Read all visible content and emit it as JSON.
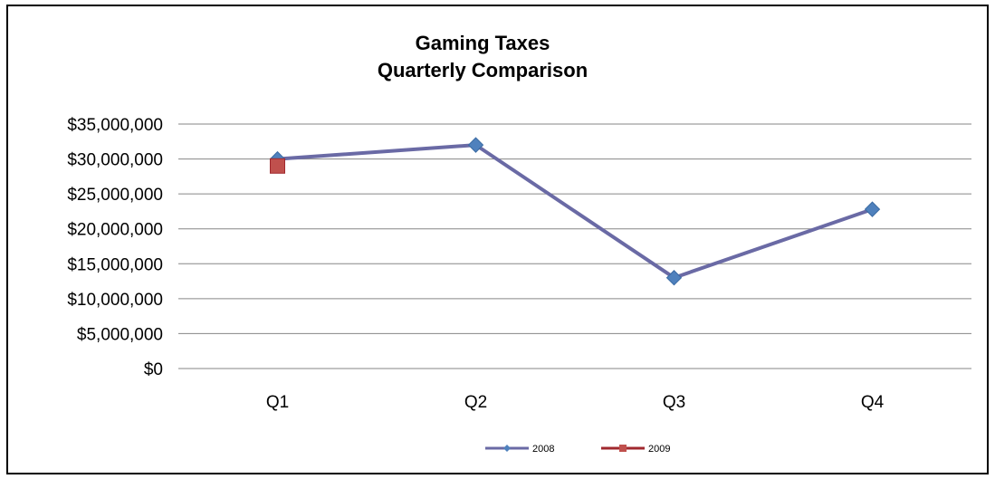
{
  "chart_data": {
    "type": "line",
    "title": "Gaming Taxes",
    "subtitle": "Quarterly Comparison",
    "categories": [
      "Q1",
      "Q2",
      "Q3",
      "Q4"
    ],
    "ylim": [
      0,
      35000000
    ],
    "yticks": [
      0,
      5000000,
      10000000,
      15000000,
      20000000,
      25000000,
      30000000,
      35000000
    ],
    "ytick_labels": [
      "$0",
      "$5,000,000",
      "$10,000,000",
      "$15,000,000",
      "$20,000,000",
      "$25,000,000",
      "$30,000,000",
      "$35,000,000"
    ],
    "grid": true,
    "legend_position": "bottom",
    "series": [
      {
        "name": "2008",
        "values": [
          30000000,
          32000000,
          13000000,
          22800000
        ],
        "color": "#6A6AA5",
        "marker_color": "#4F81BD",
        "marker": "diamond"
      },
      {
        "name": "2009",
        "values": [
          29000000,
          null,
          null,
          null
        ],
        "color": "#A0282E",
        "marker_color": "#C0504D",
        "marker": "square"
      }
    ]
  }
}
